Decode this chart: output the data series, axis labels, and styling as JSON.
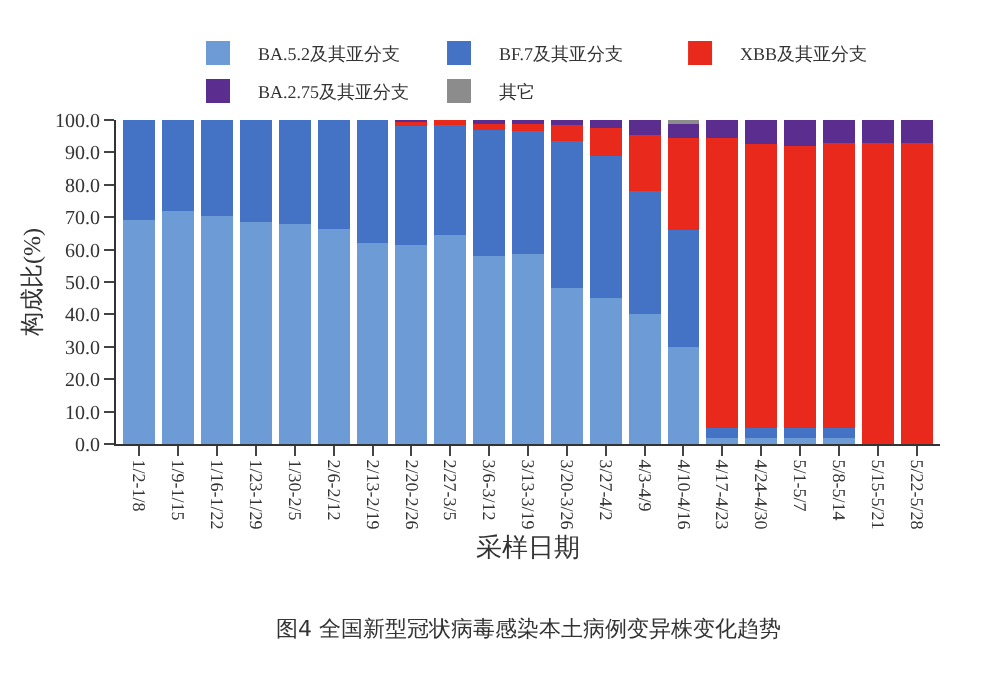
{
  "chart_data": {
    "type": "bar",
    "stacked": true,
    "xlabel": "采样日期",
    "ylabel": "构成比(%)",
    "annotations": [
      "图4 全国新型冠状病毒感染本土病例变异株变化趋势"
    ],
    "categories": [
      "1/2-1/8",
      "1/9-1/15",
      "1/16-1/22",
      "1/23-1/29",
      "1/30-2/5",
      "2/6-2/12",
      "2/13-2/19",
      "2/20-2/26",
      "2/27-3/5",
      "3/6-3/12",
      "3/13-3/19",
      "3/20-3/26",
      "3/27-4/2",
      "4/3-4/9",
      "4/10-4/16",
      "4/17-4/23",
      "4/24-4/30",
      "5/1-5/7",
      "5/8-5/14",
      "5/15-5/21",
      "5/22-5/28"
    ],
    "series": [
      {
        "name": "BA.5.2及其亚分支",
        "color": "#6d9bd6",
        "values": [
          69,
          72,
          70.5,
          68.5,
          68,
          66.5,
          62,
          61.5,
          64.5,
          58,
          58.5,
          48,
          45,
          40,
          30,
          2,
          2,
          2,
          2,
          0,
          0
        ]
      },
      {
        "name": "BF.7及其亚分支",
        "color": "#4472c4",
        "values": [
          31,
          28,
          29.5,
          31.5,
          32,
          33.5,
          38,
          37,
          34,
          39,
          38,
          45.5,
          44,
          38,
          36,
          3,
          3,
          3,
          3,
          0,
          0
        ]
      },
      {
        "name": "XBB及其亚分支",
        "color": "#e8291c",
        "values": [
          0,
          0,
          0,
          0,
          0,
          0,
          0,
          1,
          1.5,
          2,
          2.5,
          5,
          8.5,
          17.5,
          28.5,
          89.5,
          87.5,
          87,
          88,
          93,
          93
        ]
      },
      {
        "name": "BA.2.75及其亚分支",
        "color": "#5b2d8e",
        "values": [
          0,
          0,
          0,
          0,
          0,
          0,
          0,
          0.5,
          0,
          1,
          1,
          1.5,
          2.5,
          4.5,
          4.5,
          5.5,
          7.5,
          8,
          7,
          7,
          7
        ]
      },
      {
        "name": "其它",
        "color": "#8c8c8c",
        "values": [
          0,
          0,
          0,
          0,
          0,
          0,
          0,
          0,
          0,
          0,
          0,
          0,
          0,
          0,
          1,
          0,
          0,
          0,
          0,
          0,
          0
        ]
      }
    ],
    "ylim": [
      0,
      100
    ],
    "yticks": [
      {
        "value": 0,
        "label": "0.0"
      },
      {
        "value": 10,
        "label": "10.0"
      },
      {
        "value": 20,
        "label": "20.0"
      },
      {
        "value": 30,
        "label": "30.0"
      },
      {
        "value": 40,
        "label": "40.0"
      },
      {
        "value": 50,
        "label": "50.0"
      },
      {
        "value": 60,
        "label": "60.0"
      },
      {
        "value": 70,
        "label": "70.0"
      },
      {
        "value": 80,
        "label": "80.0"
      },
      {
        "value": 90,
        "label": "90.0"
      },
      {
        "value": 100,
        "label": "100.0"
      }
    ],
    "legend": "top"
  }
}
